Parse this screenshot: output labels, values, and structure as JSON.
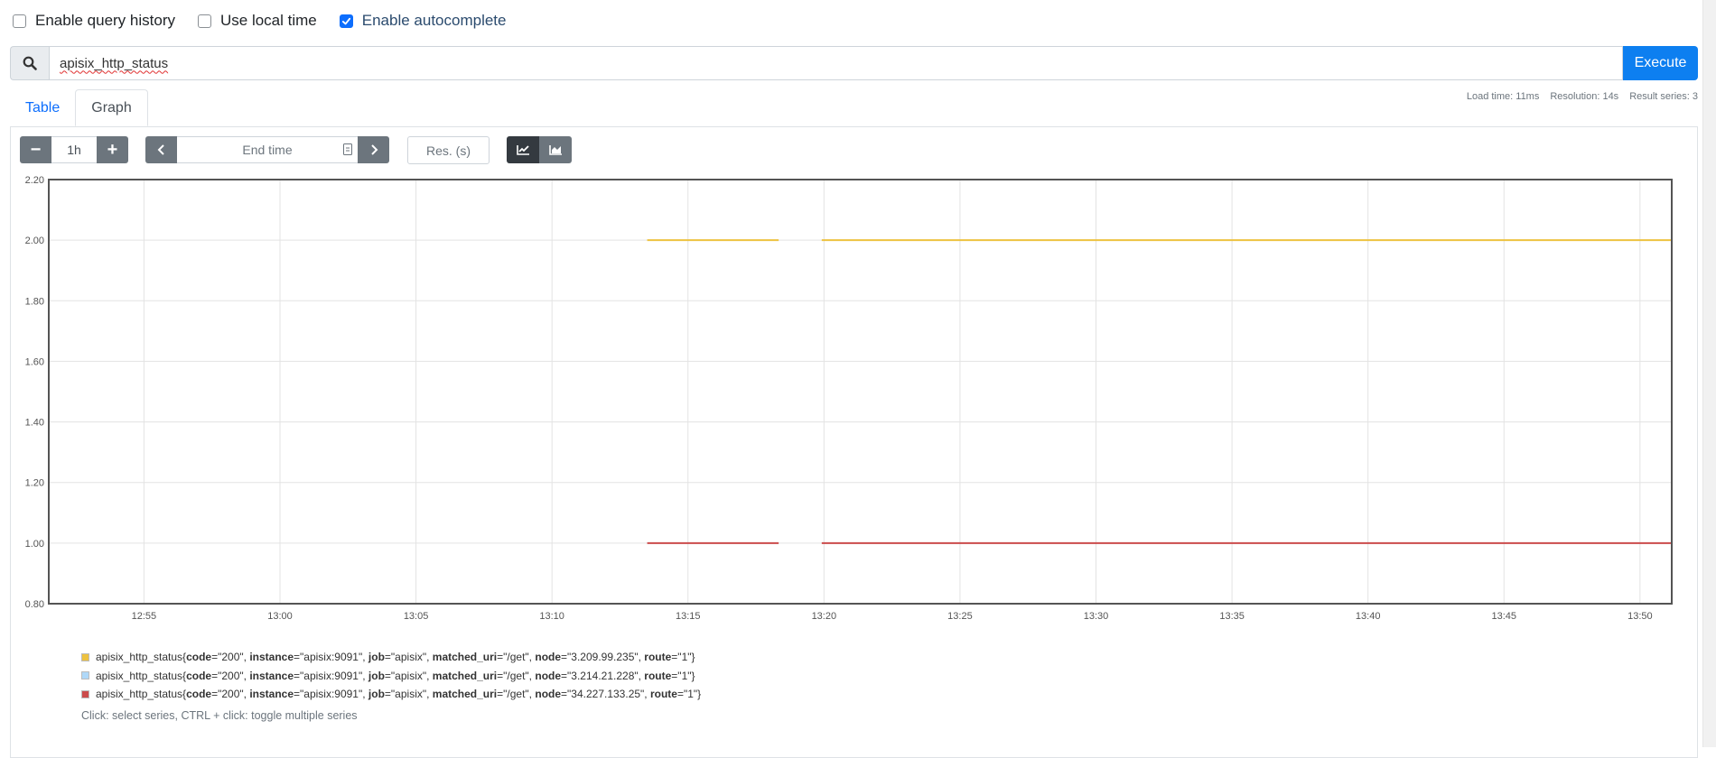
{
  "options": {
    "query_history": {
      "label": "Enable query history",
      "checked": false
    },
    "local_time": {
      "label": "Use local time",
      "checked": false
    },
    "autocomplete": {
      "label": "Enable autocomplete",
      "checked": true
    }
  },
  "query": {
    "value": "apisix_http_status",
    "execute_label": "Execute",
    "search_icon": "search-icon"
  },
  "stats": {
    "load_time": "Load time: 11ms",
    "resolution": "Resolution: 14s",
    "result_series": "Result series: 3"
  },
  "tabs": [
    {
      "label": "Table",
      "active": false
    },
    {
      "label": "Graph",
      "active": true
    }
  ],
  "controls": {
    "range_minus": "−",
    "range": "1h",
    "range_plus": "+",
    "end_time_placeholder": "End time",
    "res_placeholder": "Res. (s)",
    "prev_icon": "chevron-left-icon",
    "next_icon": "chevron-right-icon",
    "calendar_icon": "calendar-icon",
    "line_icon": "line-chart-icon",
    "stacked_icon": "area-chart-icon"
  },
  "chart_data": {
    "type": "line",
    "ylim": [
      0.8,
      2.2
    ],
    "y_ticks": [
      "0.80",
      "1.00",
      "1.20",
      "1.40",
      "1.60",
      "1.80",
      "2.00",
      "2.20"
    ],
    "y_tick_values": [
      0.8,
      1.0,
      1.2,
      1.4,
      1.6,
      1.8,
      2.0,
      2.2
    ],
    "x_range": [
      "12:51:30",
      "13:51:10"
    ],
    "x_ticks": [
      "12:55",
      "13:00",
      "13:05",
      "13:10",
      "13:15",
      "13:20",
      "13:25",
      "13:30",
      "13:35",
      "13:40",
      "13:45",
      "13:50"
    ],
    "grid": true,
    "series": [
      {
        "name": "apisix_http_status{code=\"200\", instance=\"apisix:9091\", job=\"apisix\", matched_uri=\"/get\", node=\"3.209.99.235\", route=\"1\"}",
        "color": "#edc240",
        "segments": [
          {
            "x": [
              "13:13:30",
              "13:18:20"
            ],
            "y": 2.0
          },
          {
            "x": [
              "13:19:55",
              "13:51:10"
            ],
            "y": 2.0
          }
        ]
      },
      {
        "name": "apisix_http_status{code=\"200\", instance=\"apisix:9091\", job=\"apisix\", matched_uri=\"/get\", node=\"3.214.21.228\", route=\"1\"}",
        "color": "#afd8f8",
        "segments": []
      },
      {
        "name": "apisix_http_status{code=\"200\", instance=\"apisix:9091\", job=\"apisix\", matched_uri=\"/get\", node=\"34.227.133.25\", route=\"1\"}",
        "color": "#cb4b4b",
        "segments": [
          {
            "x": [
              "13:13:30",
              "13:18:20"
            ],
            "y": 1.0
          },
          {
            "x": [
              "13:19:55",
              "13:51:10"
            ],
            "y": 1.0
          }
        ]
      }
    ]
  },
  "legend": {
    "rows": [
      {
        "metric": "apisix_http_status",
        "code": "\"200\"",
        "instance": "\"apisix:9091\"",
        "job": "\"apisix\"",
        "matched_uri": "\"/get\"",
        "node": "\"3.209.99.235\"",
        "route": "\"1\""
      },
      {
        "metric": "apisix_http_status",
        "code": "\"200\"",
        "instance": "\"apisix:9091\"",
        "job": "\"apisix\"",
        "matched_uri": "\"/get\"",
        "node": "\"3.214.21.228\"",
        "route": "\"1\""
      },
      {
        "metric": "apisix_http_status",
        "code": "\"200\"",
        "instance": "\"apisix:9091\"",
        "job": "\"apisix\"",
        "matched_uri": "\"/get\"",
        "node": "\"34.227.133.25\"",
        "route": "\"1\""
      }
    ],
    "hint": "Click: select series, CTRL + click: toggle multiple series"
  }
}
